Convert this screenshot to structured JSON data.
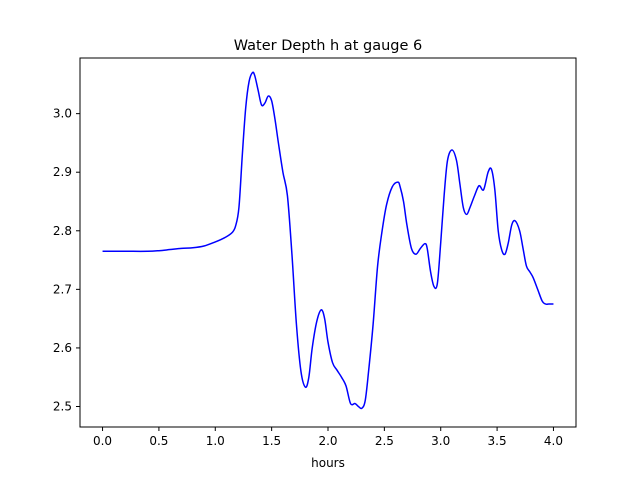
{
  "chart_data": {
    "type": "line",
    "title": "Water Depth h at gauge 6",
    "xlabel": "hours",
    "ylabel": "",
    "xlim": [
      -0.2,
      4.2
    ],
    "ylim": [
      2.465,
      3.095
    ],
    "xticks": [
      0.0,
      0.5,
      1.0,
      1.5,
      2.0,
      2.5,
      3.0,
      3.5,
      4.0
    ],
    "xtick_labels": [
      "0.0",
      "0.5",
      "1.0",
      "1.5",
      "2.0",
      "2.5",
      "3.0",
      "3.5",
      "4.0"
    ],
    "yticks": [
      2.5,
      2.6,
      2.7,
      2.8,
      2.9,
      3.0
    ],
    "ytick_labels": [
      "2.5",
      "2.6",
      "2.7",
      "2.8",
      "2.9",
      "3.0"
    ],
    "grid": false,
    "series": [
      {
        "color": "#0000ff",
        "x": [
          0.0,
          0.2,
          0.4,
          0.5,
          0.6,
          0.7,
          0.8,
          0.9,
          1.0,
          1.05,
          1.1,
          1.15,
          1.18,
          1.21,
          1.24,
          1.27,
          1.3,
          1.33,
          1.35,
          1.38,
          1.41,
          1.44,
          1.47,
          1.5,
          1.53,
          1.56,
          1.6,
          1.64,
          1.68,
          1.72,
          1.76,
          1.8,
          1.83,
          1.86,
          1.9,
          1.94,
          1.97,
          2.0,
          2.04,
          2.08,
          2.12,
          2.16,
          2.2,
          2.24,
          2.27,
          2.3,
          2.33,
          2.36,
          2.4,
          2.44,
          2.48,
          2.52,
          2.57,
          2.62,
          2.64,
          2.67,
          2.7,
          2.74,
          2.78,
          2.82,
          2.86,
          2.88,
          2.91,
          2.94,
          2.97,
          3.0,
          3.03,
          3.06,
          3.1,
          3.14,
          3.17,
          3.2,
          3.23,
          3.26,
          3.3,
          3.34,
          3.38,
          3.42,
          3.45,
          3.48,
          3.51,
          3.54,
          3.57,
          3.6,
          3.63,
          3.66,
          3.7,
          3.73,
          3.76,
          3.79,
          3.82,
          3.86,
          3.9,
          3.93,
          3.96,
          4.0
        ],
        "y": [
          2.765,
          2.765,
          2.765,
          2.766,
          2.768,
          2.77,
          2.771,
          2.774,
          2.781,
          2.785,
          2.79,
          2.797,
          2.808,
          2.84,
          2.93,
          3.01,
          3.055,
          3.07,
          3.065,
          3.04,
          3.015,
          3.018,
          3.03,
          3.022,
          2.99,
          2.95,
          2.9,
          2.86,
          2.76,
          2.64,
          2.56,
          2.533,
          2.55,
          2.6,
          2.645,
          2.665,
          2.65,
          2.61,
          2.575,
          2.562,
          2.55,
          2.535,
          2.505,
          2.505,
          2.5,
          2.497,
          2.51,
          2.56,
          2.64,
          2.74,
          2.8,
          2.845,
          2.875,
          2.883,
          2.875,
          2.85,
          2.81,
          2.77,
          2.76,
          2.77,
          2.778,
          2.77,
          2.73,
          2.705,
          2.71,
          2.78,
          2.86,
          2.92,
          2.938,
          2.92,
          2.88,
          2.84,
          2.828,
          2.84,
          2.86,
          2.877,
          2.87,
          2.9,
          2.905,
          2.87,
          2.8,
          2.768,
          2.76,
          2.78,
          2.81,
          2.817,
          2.8,
          2.77,
          2.74,
          2.73,
          2.72,
          2.7,
          2.68,
          2.675,
          2.675,
          2.675
        ]
      }
    ]
  }
}
